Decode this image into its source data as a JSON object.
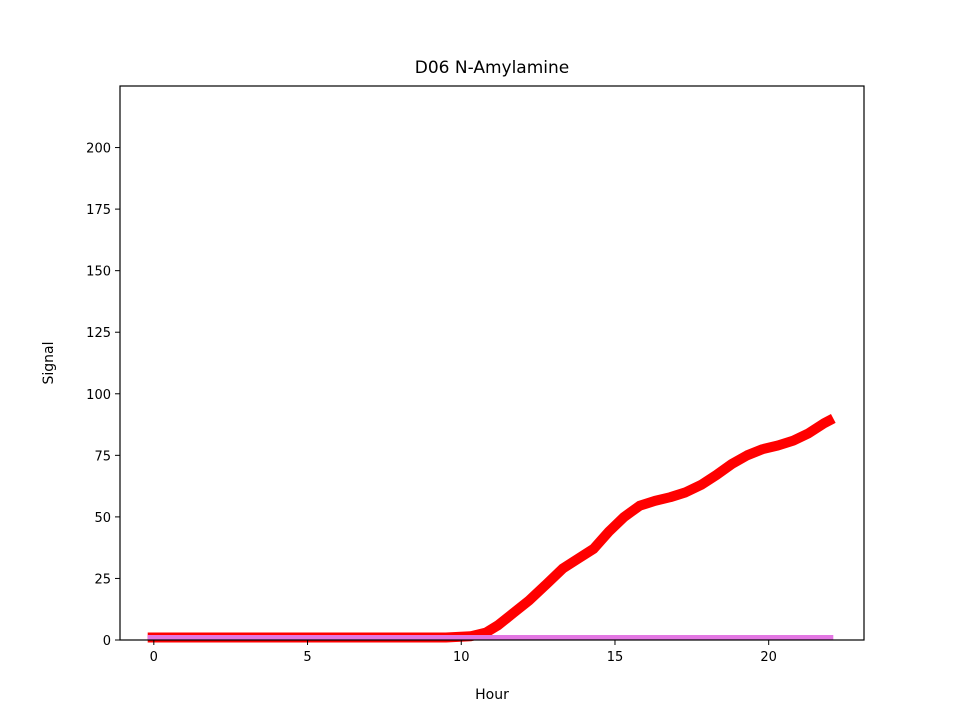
{
  "chart_data": {
    "type": "line",
    "title": "D06 N-Amylamine",
    "xlabel": "Hour",
    "ylabel": "Signal",
    "xlim": [
      -1.1,
      23.1
    ],
    "ylim": [
      0,
      225
    ],
    "xticks": [
      0,
      5,
      10,
      15,
      20
    ],
    "yticks": [
      0,
      25,
      50,
      75,
      100,
      125,
      150,
      175,
      200
    ],
    "grid": false,
    "series": [
      {
        "color": "#ff0000",
        "x": [
          -0.2,
          2,
          4,
          6,
          8,
          9.5,
          10.3,
          10.8,
          11.2,
          11.7,
          12.2,
          12.8,
          13.3,
          13.8,
          14.3,
          14.8,
          15.3,
          15.8,
          16.3,
          16.8,
          17.3,
          17.8,
          18.3,
          18.8,
          19.3,
          19.8,
          20.3,
          20.8,
          21.3,
          21.8,
          22.1
        ],
        "y": [
          1,
          1,
          1,
          1,
          1,
          1,
          1.5,
          3,
          6,
          11,
          16,
          23,
          29,
          33,
          37,
          44,
          50,
          54.5,
          56.5,
          58,
          60,
          63,
          67,
          71.5,
          75,
          77.5,
          79,
          81,
          84,
          88,
          90
        ]
      },
      {
        "color": "#e377e3",
        "x": [
          -0.2,
          22.1
        ],
        "y": [
          1,
          1
        ]
      }
    ]
  }
}
